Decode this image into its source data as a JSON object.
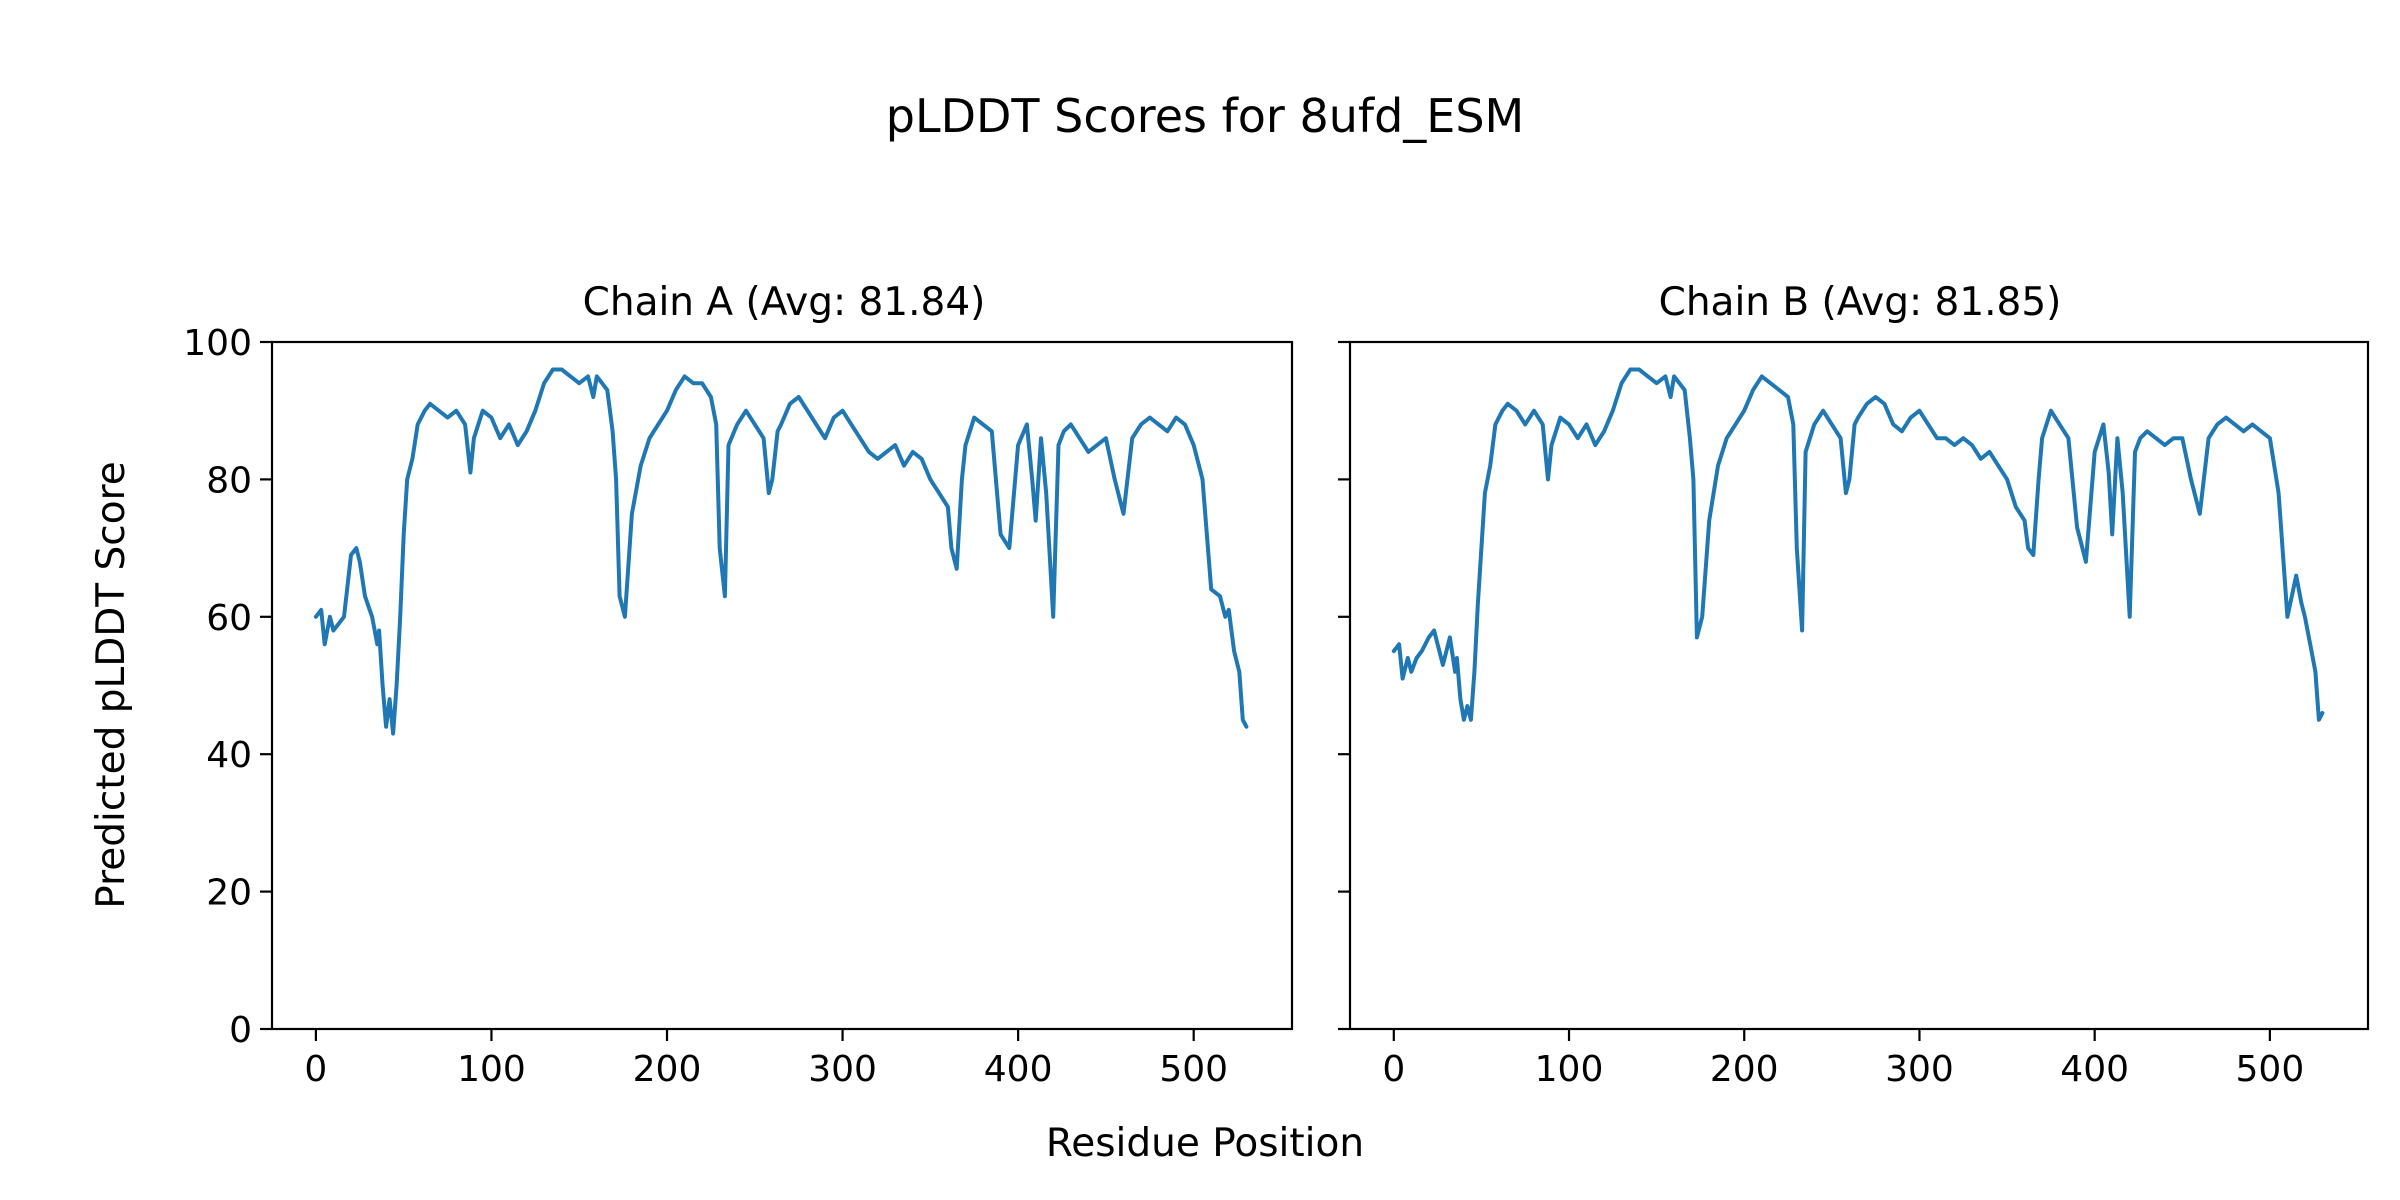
{
  "figure": {
    "title": "pLDDT Scores for 8ufd_ESM",
    "xlabel": "Residue Position",
    "ylabel": "Predicted pLDDT Score",
    "line_color": "#1f77b4"
  },
  "chart_data": [
    {
      "type": "line",
      "title": "Chain A (Avg: 81.84)",
      "xlabel": "Residue Position",
      "ylabel": "Predicted pLDDT Score",
      "xlim": [
        -25,
        556
      ],
      "ylim": [
        0,
        100
      ],
      "xticks": [
        0,
        100,
        200,
        300,
        400,
        500
      ],
      "yticks": [
        0,
        20,
        40,
        60,
        80,
        100
      ],
      "grid": false,
      "x": [
        0,
        3,
        5,
        8,
        10,
        13,
        16,
        20,
        23,
        25,
        28,
        32,
        35,
        36,
        38,
        40,
        42,
        44,
        46,
        48,
        50,
        52,
        55,
        58,
        62,
        65,
        70,
        75,
        80,
        85,
        88,
        90,
        95,
        100,
        105,
        110,
        115,
        120,
        125,
        130,
        135,
        140,
        145,
        150,
        155,
        158,
        160,
        163,
        166,
        169,
        171,
        173,
        176,
        180,
        185,
        190,
        195,
        200,
        205,
        210,
        215,
        220,
        225,
        228,
        230,
        233,
        235,
        240,
        245,
        250,
        255,
        258,
        260,
        263,
        265,
        270,
        275,
        280,
        285,
        290,
        295,
        300,
        305,
        310,
        315,
        320,
        325,
        330,
        335,
        340,
        345,
        350,
        355,
        360,
        362,
        365,
        368,
        370,
        375,
        380,
        385,
        390,
        395,
        400,
        405,
        408,
        410,
        413,
        416,
        420,
        423,
        426,
        430,
        435,
        440,
        445,
        450,
        455,
        460,
        465,
        470,
        475,
        480,
        485,
        490,
        495,
        500,
        505,
        510,
        515,
        518,
        520,
        523,
        526,
        528,
        530
      ],
      "series": [
        {
          "values": [
            60,
            61,
            56,
            60,
            58,
            59,
            60,
            69,
            70,
            68,
            63,
            60,
            56,
            58,
            50,
            44,
            48,
            43,
            50,
            60,
            72,
            80,
            83,
            88,
            90,
            91,
            90,
            89,
            90,
            88,
            81,
            86,
            90,
            89,
            86,
            88,
            85,
            87,
            90,
            94,
            96,
            96,
            95,
            94,
            95,
            92,
            95,
            94,
            93,
            87,
            80,
            63,
            60,
            75,
            82,
            86,
            88,
            90,
            93,
            95,
            94,
            94,
            92,
            88,
            70,
            63,
            85,
            88,
            90,
            88,
            86,
            78,
            80,
            87,
            88,
            91,
            92,
            90,
            88,
            86,
            89,
            90,
            88,
            86,
            84,
            83,
            84,
            85,
            82,
            84,
            83,
            80,
            78,
            76,
            70,
            67,
            80,
            85,
            89,
            88,
            87,
            72,
            70,
            85,
            88,
            80,
            74,
            86,
            78,
            60,
            85,
            87,
            88,
            86,
            84,
            85,
            86,
            80,
            75,
            86,
            88,
            89,
            88,
            87,
            89,
            88,
            85,
            80,
            64,
            63,
            60,
            61,
            55,
            52,
            45,
            44
          ]
        }
      ]
    },
    {
      "type": "line",
      "title": "Chain B (Avg: 81.85)",
      "xlabel": "Residue Position",
      "ylim": [
        0,
        100
      ],
      "xlim": [
        -25,
        556
      ],
      "xticks": [
        0,
        100,
        200,
        300,
        400,
        500
      ],
      "yticks": [
        0,
        20,
        40,
        60,
        80,
        100
      ],
      "grid": false,
      "x": [
        0,
        3,
        5,
        8,
        10,
        13,
        16,
        20,
        23,
        25,
        28,
        32,
        35,
        36,
        38,
        40,
        42,
        44,
        46,
        48,
        50,
        52,
        55,
        58,
        62,
        65,
        70,
        75,
        80,
        85,
        88,
        90,
        95,
        100,
        105,
        110,
        115,
        120,
        125,
        130,
        135,
        140,
        145,
        150,
        155,
        158,
        160,
        163,
        166,
        169,
        171,
        173,
        176,
        180,
        185,
        190,
        195,
        200,
        205,
        210,
        215,
        220,
        225,
        228,
        230,
        233,
        235,
        240,
        245,
        250,
        255,
        258,
        260,
        263,
        265,
        270,
        275,
        280,
        285,
        290,
        295,
        300,
        305,
        310,
        315,
        320,
        325,
        330,
        335,
        340,
        345,
        350,
        355,
        360,
        362,
        365,
        368,
        370,
        375,
        380,
        385,
        390,
        395,
        400,
        405,
        408,
        410,
        413,
        416,
        420,
        423,
        426,
        430,
        435,
        440,
        445,
        450,
        455,
        460,
        465,
        470,
        475,
        480,
        485,
        490,
        495,
        500,
        505,
        510,
        515,
        518,
        520,
        523,
        526,
        528,
        530
      ],
      "series": [
        {
          "values": [
            55,
            56,
            51,
            54,
            52,
            54,
            55,
            57,
            58,
            56,
            53,
            57,
            52,
            54,
            48,
            45,
            47,
            45,
            52,
            62,
            70,
            78,
            82,
            88,
            90,
            91,
            90,
            88,
            90,
            88,
            80,
            85,
            89,
            88,
            86,
            88,
            85,
            87,
            90,
            94,
            96,
            96,
            95,
            94,
            95,
            92,
            95,
            94,
            93,
            86,
            80,
            57,
            60,
            74,
            82,
            86,
            88,
            90,
            93,
            95,
            94,
            93,
            92,
            88,
            70,
            58,
            84,
            88,
            90,
            88,
            86,
            78,
            80,
            88,
            89,
            91,
            92,
            91,
            88,
            87,
            89,
            90,
            88,
            86,
            86,
            85,
            86,
            85,
            83,
            84,
            82,
            80,
            76,
            74,
            70,
            69,
            80,
            86,
            90,
            88,
            86,
            73,
            68,
            84,
            88,
            81,
            72,
            86,
            78,
            60,
            84,
            86,
            87,
            86,
            85,
            86,
            86,
            80,
            75,
            86,
            88,
            89,
            88,
            87,
            88,
            87,
            86,
            78,
            60,
            66,
            62,
            60,
            56,
            52,
            45,
            46
          ]
        }
      ]
    }
  ]
}
